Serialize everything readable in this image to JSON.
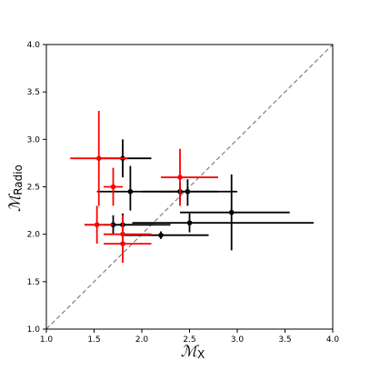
{
  "chart_data": {
    "type": "scatter",
    "title": "",
    "xlabel": {
      "main": "ℳ",
      "sub": "X"
    },
    "ylabel": {
      "main": "ℳ",
      "sub": "Radio"
    },
    "xlim": [
      1.0,
      4.0
    ],
    "ylim": [
      1.0,
      4.0
    ],
    "xticks": [
      "1.0",
      "1.5",
      "2.0",
      "2.5",
      "3.0",
      "3.5",
      "4.0"
    ],
    "yticks": [
      "1.0",
      "1.5",
      "2.0",
      "2.5",
      "3.0",
      "3.5",
      "4.0"
    ],
    "grid": false,
    "reference_line": {
      "from": [
        1.0,
        1.0
      ],
      "to": [
        4.0,
        4.0
      ],
      "style": "dashed",
      "color": "#808080"
    },
    "series": [
      {
        "color": "#000000",
        "points": [
          {
            "x": 1.8,
            "y": 2.8,
            "xlo": 1.55,
            "xhi": 2.1,
            "ylo": 2.6,
            "yhi": 3.0
          },
          {
            "x": 1.88,
            "y": 2.45,
            "xlo": 1.53,
            "xhi": 2.38,
            "ylo": 2.25,
            "yhi": 2.72
          },
          {
            "x": 2.4,
            "y": 2.45,
            "xlo": 2.0,
            "xhi": 3.0,
            "ylo": 2.35,
            "yhi": 2.55
          },
          {
            "x": 2.48,
            "y": 2.45,
            "xlo": 2.2,
            "xhi": 2.8,
            "ylo": 2.3,
            "yhi": 2.58
          },
          {
            "x": 2.94,
            "y": 2.23,
            "xlo": 2.4,
            "xhi": 3.55,
            "ylo": 1.83,
            "yhi": 2.63
          },
          {
            "x": 2.5,
            "y": 2.12,
            "xlo": 1.9,
            "xhi": 3.8,
            "ylo": 2.02,
            "yhi": 2.22
          },
          {
            "x": 1.7,
            "y": 2.1,
            "xlo": 1.4,
            "xhi": 2.3,
            "ylo": 2.0,
            "yhi": 2.2
          },
          {
            "x": 1.8,
            "y": 2.1,
            "xlo": 1.6,
            "xhi": 2.1,
            "ylo": 1.98,
            "yhi": 2.22
          },
          {
            "x": 2.2,
            "y": 1.99,
            "xlo": 1.8,
            "xhi": 2.7,
            "ylo": 1.95,
            "yhi": 2.03
          }
        ]
      },
      {
        "color": "#ff0000",
        "points": [
          {
            "x": 1.55,
            "y": 2.8,
            "xlo": 1.25,
            "xhi": 1.85,
            "ylo": 2.3,
            "yhi": 3.3
          },
          {
            "x": 1.7,
            "y": 2.5,
            "xlo": 1.6,
            "xhi": 1.8,
            "ylo": 2.3,
            "yhi": 2.7
          },
          {
            "x": 2.4,
            "y": 2.6,
            "xlo": 2.2,
            "xhi": 2.8,
            "ylo": 2.3,
            "yhi": 2.9
          },
          {
            "x": 1.53,
            "y": 2.1,
            "xlo": 1.4,
            "xhi": 1.7,
            "ylo": 1.9,
            "yhi": 2.3
          },
          {
            "x": 1.8,
            "y": 2.0,
            "xlo": 1.6,
            "xhi": 2.1,
            "ylo": 1.8,
            "yhi": 2.2
          },
          {
            "x": 1.8,
            "y": 1.9,
            "xlo": 1.6,
            "xhi": 2.1,
            "ylo": 1.7,
            "yhi": 2.1
          }
        ]
      }
    ]
  }
}
